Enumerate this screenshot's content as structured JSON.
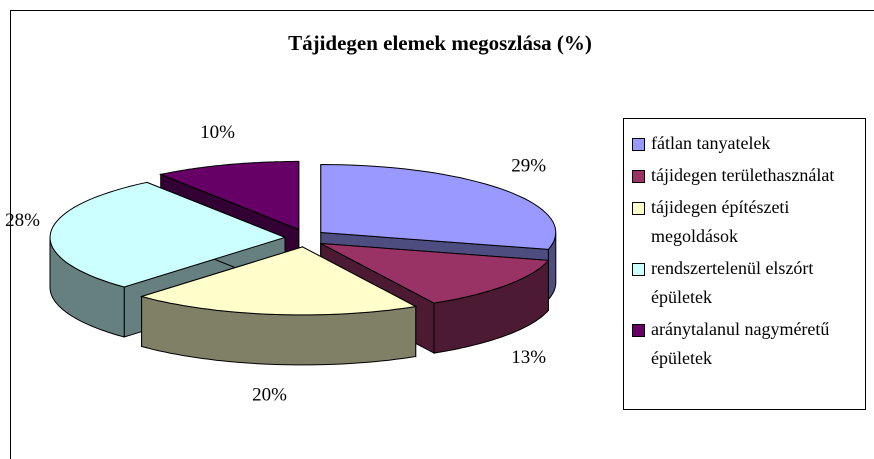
{
  "chart_data": {
    "type": "pie3d",
    "title": "Tájidegen elemek megoszlása (%)",
    "categories": [
      "fátlan tanyatelek",
      "tájidegen területhasználat",
      "tájidegen építészeti megoldások",
      "rendszertelenül elszórt épületek",
      "aránytalanul nagyméretű épületek"
    ],
    "values": [
      29,
      13,
      20,
      28,
      10
    ],
    "value_labels": [
      "29%",
      "13%",
      "20%",
      "28%",
      "10%"
    ],
    "colors": [
      "#9999ff",
      "#993366",
      "#ffffcc",
      "#ccffff",
      "#660066"
    ],
    "legend": "right"
  }
}
